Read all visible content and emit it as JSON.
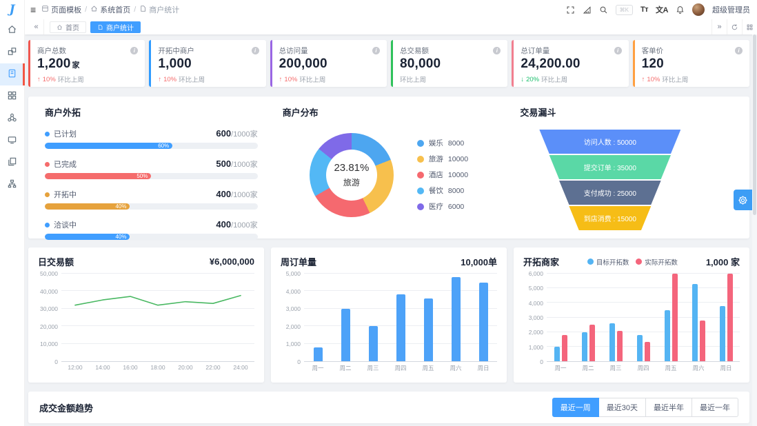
{
  "app": {
    "logo_text": "J"
  },
  "sidebar": {
    "items": [
      {
        "name": "home"
      },
      {
        "name": "components"
      },
      {
        "name": "page-templates",
        "active": true
      },
      {
        "name": "applications"
      },
      {
        "name": "ecosystem"
      },
      {
        "name": "messages"
      },
      {
        "name": "documents"
      },
      {
        "name": "organization"
      }
    ]
  },
  "navbar": {
    "breadcrumb": [
      {
        "label": "页面模板"
      },
      {
        "label": "系统首页"
      },
      {
        "label": "商户统计"
      }
    ],
    "separator": "/",
    "search_shortcut": "⌘K",
    "font_icon": "Tт",
    "lang_icon": "文A",
    "username": "超级管理员"
  },
  "tabbar": {
    "tabs": [
      {
        "label": "首页",
        "active": false
      },
      {
        "label": "商户统计",
        "active": true
      }
    ]
  },
  "colors": {
    "up": "#f56c6c",
    "down": "#19be6b",
    "primary": "#409eff"
  },
  "stats": [
    {
      "title": "商户总数",
      "value": "1,200",
      "unit": "家",
      "trend_dir": "up",
      "trend_percent": "10%",
      "trend_label": "环比上周",
      "accent": "#f0564f"
    },
    {
      "title": "开拓中商户",
      "value": "1,000",
      "unit": "",
      "trend_dir": "up",
      "trend_percent": "10%",
      "trend_label": "环比上周",
      "accent": "#2f9bff"
    },
    {
      "title": "总访问量",
      "value": "200,000",
      "unit": "",
      "trend_dir": "up",
      "trend_percent": "10%",
      "trend_label": "环比上周",
      "accent": "#9a66e4"
    },
    {
      "title": "总交易额",
      "value": "80,000",
      "unit": "",
      "trend_dir": "none",
      "trend_percent": "",
      "trend_label": "环比上周",
      "accent": "#2fc25b"
    },
    {
      "title": "总订单量",
      "value": "24,200.00",
      "unit": "",
      "trend_dir": "down",
      "trend_percent": "20%",
      "trend_label": "环比上周",
      "accent": "#f17e8f"
    },
    {
      "title": "客单价",
      "value": "120",
      "unit": "",
      "trend_dir": "up",
      "trend_percent": "10%",
      "trend_label": "环比上周",
      "accent": "#ff9f40"
    }
  ],
  "sections": {
    "outreach": {
      "title": "商户外拓",
      "rows": [
        {
          "label": "已计划",
          "value": "600",
          "total": "1000家",
          "percent": 60,
          "color": "#409eff"
        },
        {
          "label": "已完成",
          "value": "500",
          "total": "1000家",
          "percent": 50,
          "color": "#f56c6c"
        },
        {
          "label": "开拓中",
          "value": "400",
          "total": "1000家",
          "percent": 40,
          "color": "#e6a23c"
        },
        {
          "label": "洽谈中",
          "value": "400",
          "total": "1000家",
          "percent": 40,
          "color": "#409eff"
        }
      ]
    },
    "distribution": {
      "title": "商户分布",
      "center_value": "23.81%",
      "center_label": "旅游",
      "legend": [
        {
          "label": "娱乐",
          "value": 8000,
          "color": "#4da6f0"
        },
        {
          "label": "旅游",
          "value": 10000,
          "color": "#f7c04d"
        },
        {
          "label": "酒店",
          "value": 10000,
          "color": "#f5696f"
        },
        {
          "label": "餐饮",
          "value": 8000,
          "color": "#53b8f5"
        },
        {
          "label": "医疗",
          "value": 6000,
          "color": "#7f6ae8"
        }
      ]
    },
    "funnel": {
      "title": "交易漏斗",
      "steps": [
        {
          "label": "访问人数",
          "value": 50000,
          "color": "#5b8ff9"
        },
        {
          "label": "提交订单",
          "value": 35000,
          "color": "#5ad8a6"
        },
        {
          "label": "支付成功",
          "value": 25000,
          "color": "#5d7092"
        },
        {
          "label": "到店消费",
          "value": 15000,
          "color": "#f6bd16"
        }
      ]
    }
  },
  "charts": {
    "daily": {
      "type": "line",
      "title": "日交易额",
      "total": "¥6,000,000",
      "x": [
        "12:00",
        "14:00",
        "16:00",
        "18:00",
        "20:00",
        "22:00",
        "24:00"
      ],
      "values": [
        32000,
        35000,
        37000,
        32000,
        34000,
        33000,
        37500
      ],
      "ylim": [
        0,
        50000
      ],
      "yticks": [
        0,
        10000,
        20000,
        30000,
        40000,
        50000
      ],
      "color": "#49b862"
    },
    "weekly": {
      "type": "bar",
      "title": "周订单量",
      "total": "10,000单",
      "categories": [
        "周一",
        "周二",
        "周三",
        "周四",
        "周五",
        "周六",
        "周日"
      ],
      "values": [
        800,
        3000,
        2000,
        3800,
        3600,
        4800,
        4500
      ],
      "ylim": [
        0,
        5000
      ],
      "yticks": [
        0,
        1000,
        2000,
        3000,
        4000,
        5000
      ],
      "color": "#4da2f8"
    },
    "expand": {
      "type": "bar-grouped",
      "title": "开拓商家",
      "total": "1,000 家",
      "categories": [
        "周一",
        "周二",
        "周三",
        "周四",
        "周五",
        "周六",
        "周日"
      ],
      "series": [
        {
          "name": "目标开拓数",
          "color": "#54b4f3",
          "values": [
            1000,
            2000,
            2600,
            1800,
            3500,
            5300,
            3800
          ]
        },
        {
          "name": "实际开拓数",
          "color": "#f4657c",
          "values": [
            1800,
            2500,
            2100,
            1300,
            6000,
            2800,
            6000
          ]
        }
      ],
      "ylim": [
        0,
        6000
      ],
      "yticks": [
        0,
        1000,
        2000,
        3000,
        4000,
        5000,
        6000
      ]
    }
  },
  "trend_panel": {
    "title": "成交金额趋势",
    "ranges": [
      {
        "label": "最近一周",
        "active": true
      },
      {
        "label": "最近30天",
        "active": false
      },
      {
        "label": "最近半年",
        "active": false
      },
      {
        "label": "最近一年",
        "active": false
      }
    ]
  }
}
